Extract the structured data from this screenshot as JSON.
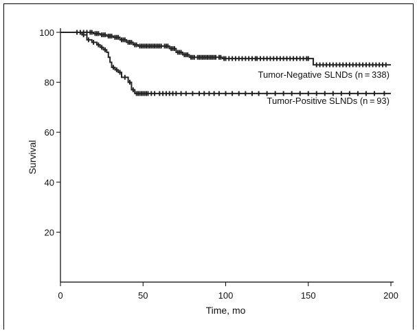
{
  "chart_data": {
    "type": "line",
    "title": "",
    "xlabel": "Time, mo",
    "ylabel": "Survival",
    "xlim": [
      0,
      200
    ],
    "ylim": [
      0,
      100
    ],
    "xticks": [
      0,
      50,
      100,
      150,
      200
    ],
    "yticks": [
      20,
      40,
      60,
      80,
      100
    ],
    "grid": false,
    "legend": "inline labels at right end of each curve",
    "series": [
      {
        "name": "Tumor-Negative SLNDs (n = 338)",
        "label": "Tumor-Negative SLNDs (n = 338)",
        "steps": [
          [
            0,
            100
          ],
          [
            15,
            100
          ],
          [
            20,
            99.5
          ],
          [
            24,
            99
          ],
          [
            28,
            98.5
          ],
          [
            32,
            98
          ],
          [
            36,
            97
          ],
          [
            40,
            96
          ],
          [
            44,
            95
          ],
          [
            47,
            94.5
          ],
          [
            62,
            94.5
          ],
          [
            66,
            93.5
          ],
          [
            70,
            92
          ],
          [
            74,
            91
          ],
          [
            78,
            90
          ],
          [
            95,
            90
          ],
          [
            98,
            89.5
          ],
          [
            151,
            89.5
          ],
          [
            153,
            87
          ],
          [
            200,
            87
          ]
        ],
        "censored_x": [
          10,
          12,
          14,
          16,
          18,
          19,
          21,
          22,
          23,
          25,
          26,
          27,
          29,
          30,
          31,
          33,
          34,
          35,
          37,
          38,
          39,
          41,
          42,
          43,
          45,
          46,
          48,
          49,
          50,
          51,
          52,
          53,
          54,
          55,
          56,
          57,
          58,
          59,
          60,
          61,
          63,
          64,
          65,
          67,
          68,
          69,
          71,
          72,
          73,
          75,
          76,
          77,
          79,
          80,
          81,
          83,
          84,
          85,
          86,
          87,
          88,
          89,
          90,
          91,
          92,
          93,
          94,
          96,
          97,
          99,
          100,
          102,
          104,
          106,
          108,
          110,
          112,
          114,
          116,
          118,
          119,
          121,
          123,
          125,
          127,
          129,
          131,
          133,
          135,
          137,
          139,
          141,
          143,
          145,
          147,
          149,
          150,
          155,
          157,
          159,
          161,
          163,
          165,
          167,
          169,
          171,
          173,
          175,
          177,
          179,
          181,
          183,
          185,
          187,
          189,
          191,
          193,
          195,
          197
        ]
      },
      {
        "name": "Tumor-Positive SLNDs (n = 93)",
        "label": "Tumor-Positive SLNDs (n = 93)",
        "steps": [
          [
            0,
            100
          ],
          [
            13,
            100
          ],
          [
            13,
            99
          ],
          [
            16,
            97
          ],
          [
            19,
            96
          ],
          [
            22,
            95
          ],
          [
            24,
            94
          ],
          [
            26,
            93
          ],
          [
            28,
            92
          ],
          [
            29,
            90
          ],
          [
            30,
            88
          ],
          [
            31,
            86
          ],
          [
            33,
            85
          ],
          [
            35,
            84
          ],
          [
            37,
            82
          ],
          [
            41,
            80
          ],
          [
            43,
            77
          ],
          [
            45,
            75.5
          ],
          [
            200,
            75.5
          ]
        ],
        "censored_x": [
          14,
          17,
          20,
          23,
          25,
          27,
          32,
          34,
          36,
          39,
          42,
          44,
          46,
          47,
          48,
          49,
          50,
          51,
          52,
          53,
          55,
          57,
          60,
          62,
          64,
          66,
          68,
          70,
          73,
          76,
          80,
          84,
          87,
          90,
          93,
          96,
          100,
          104,
          108,
          112,
          116,
          120,
          125,
          130,
          135,
          140,
          145,
          150,
          155,
          160,
          165,
          170,
          175,
          180,
          185,
          190,
          196
        ]
      }
    ]
  }
}
